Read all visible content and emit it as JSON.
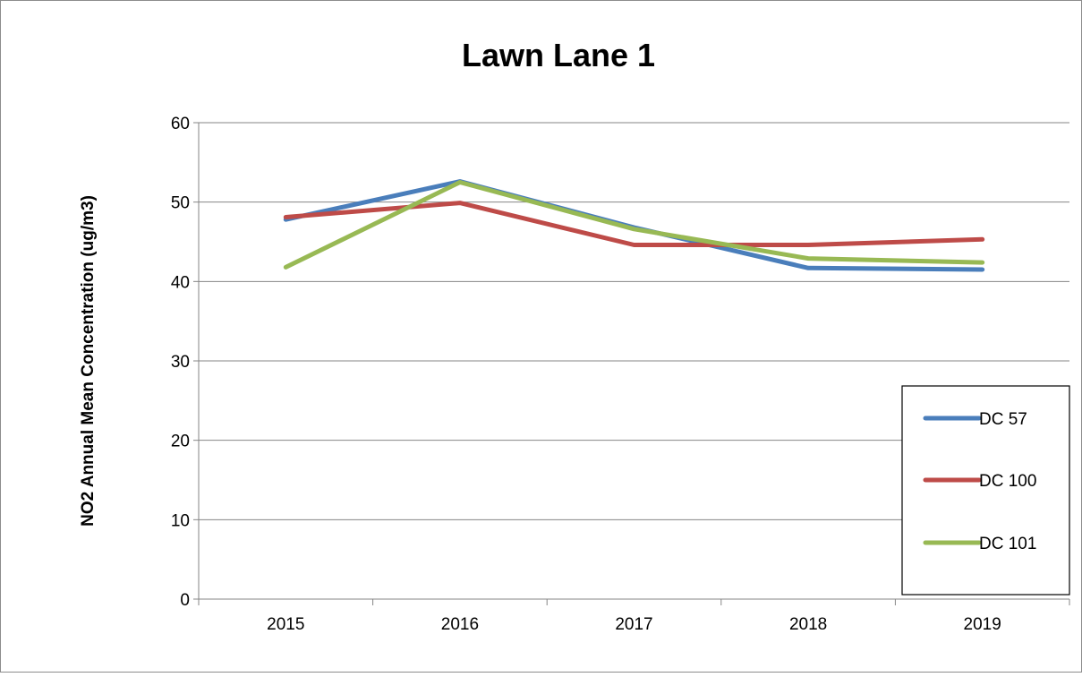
{
  "chart_data": {
    "type": "line",
    "title": "Lawn Lane 1",
    "xlabel": "",
    "ylabel": "NO2 Annual Mean Concentration (ug/m3)",
    "categories": [
      "2015",
      "2016",
      "2017",
      "2018",
      "2019"
    ],
    "ylim": [
      0,
      60
    ],
    "yticks": [
      0,
      10,
      20,
      30,
      40,
      50,
      60
    ],
    "grid": true,
    "legend_position": "right",
    "series": [
      {
        "name": "DC 57",
        "color": "#4a7ebb",
        "values": [
          47.8,
          52.6,
          46.8,
          41.7,
          41.5
        ]
      },
      {
        "name": "DC 100",
        "color": "#be4b48",
        "values": [
          48.1,
          49.9,
          44.6,
          44.6,
          45.3
        ]
      },
      {
        "name": "DC 101",
        "color": "#98b954",
        "values": [
          41.8,
          52.5,
          46.6,
          42.9,
          42.4
        ]
      }
    ]
  }
}
